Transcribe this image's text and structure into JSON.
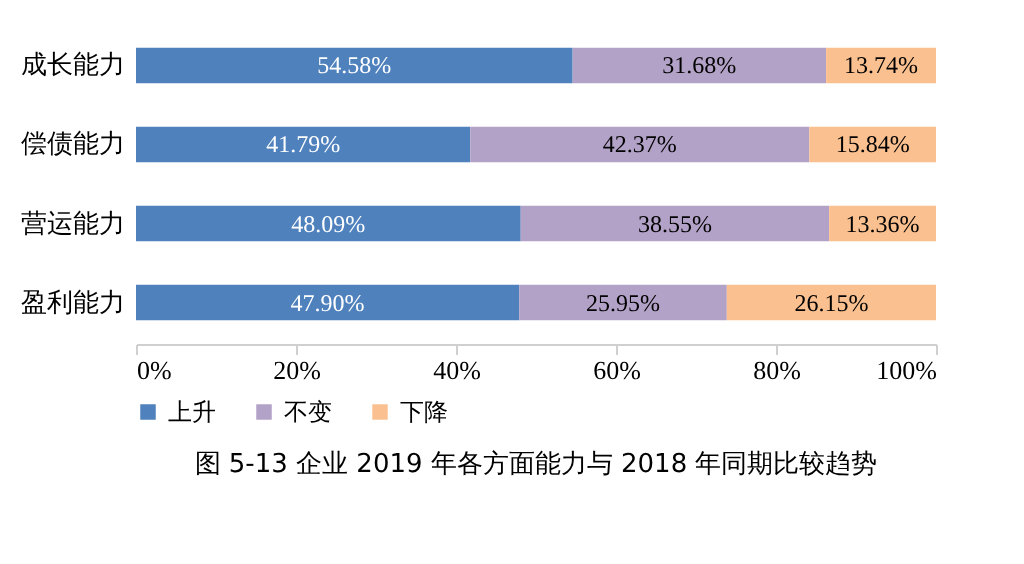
{
  "chart_data": {
    "type": "bar",
    "orientation": "horizontal",
    "stacked": true,
    "title": "图  5-13    企业 2019 年各方面能力与 2018 年同期比较趋势",
    "categories": [
      "成长能力",
      "偿债能力",
      "营运能力",
      "盈利能力"
    ],
    "series": [
      {
        "name": "上升",
        "color": "#4f81bd",
        "values": [
          54.58,
          41.79,
          48.09,
          47.9
        ],
        "value_labels": [
          "54.58%",
          "41.79%",
          "48.09%",
          "47.90%"
        ]
      },
      {
        "name": "不变",
        "color": "#b3a2c7",
        "values": [
          31.68,
          42.37,
          38.55,
          25.95
        ],
        "value_labels": [
          "31.68%",
          "42.37%",
          "38.55%",
          "25.95%"
        ]
      },
      {
        "name": "下降",
        "color": "#fac090",
        "values": [
          13.74,
          15.84,
          13.36,
          26.15
        ],
        "value_labels": [
          "13.74%",
          "15.84%",
          "13.36%",
          "26.15%"
        ]
      }
    ],
    "xlim": [
      0,
      100
    ],
    "xticks": [
      {
        "value": 0,
        "label": "0%"
      },
      {
        "value": 20,
        "label": "20%"
      },
      {
        "value": 40,
        "label": "40%"
      },
      {
        "value": 60,
        "label": "60%"
      },
      {
        "value": 80,
        "label": "80%"
      },
      {
        "value": 100,
        "label": "100%"
      }
    ],
    "grid": false,
    "legend": "bottom"
  }
}
